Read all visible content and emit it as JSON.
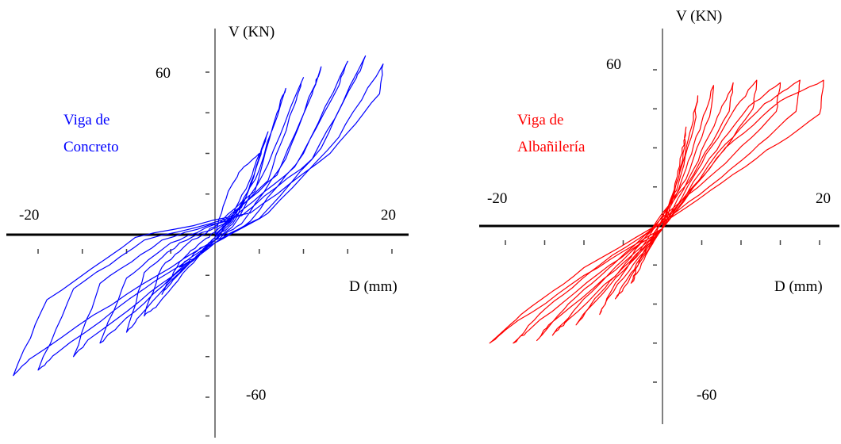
{
  "chart_data": [
    {
      "type": "line",
      "panel": "left",
      "ylabel": "V (KN)",
      "xlabel": "D (mm)",
      "y_top_label": "60",
      "y_bottom_label": "-60",
      "x_left_label": "-20",
      "x_right_label": "20",
      "annotation_line1": "Viga de",
      "annotation_line2": "Concreto",
      "color": "#0000ff",
      "xlim": [
        -25,
        25
      ],
      "ylim": [
        -70,
        70
      ],
      "series": [
        {
          "values": [
            [
              0,
              0
            ],
            [
              1.5,
              16
            ],
            [
              3,
              24
            ],
            [
              5,
              30
            ],
            [
              4.2,
              22
            ],
            [
              2,
              7
            ],
            [
              0,
              -1
            ],
            [
              -2,
              -6
            ],
            [
              -4,
              -12
            ],
            [
              -2.5,
              -9
            ],
            [
              0,
              -2
            ],
            [
              2,
              5
            ],
            [
              4,
              18
            ],
            [
              6,
              38
            ],
            [
              5,
              28
            ],
            [
              3,
              10
            ],
            [
              0,
              1
            ],
            [
              -2,
              -4
            ],
            [
              -4,
              -10
            ],
            [
              -6,
              -22
            ],
            [
              -4.5,
              -16
            ],
            [
              -2,
              -8
            ],
            [
              0,
              -1
            ],
            [
              2,
              4
            ],
            [
              5,
              24
            ],
            [
              8,
              54
            ],
            [
              7,
              45
            ],
            [
              4.5,
              16
            ],
            [
              0,
              3
            ],
            [
              -3,
              -3
            ],
            [
              -6,
              -12
            ],
            [
              -8,
              -30
            ],
            [
              -6.5,
              -26
            ],
            [
              -3,
              -12
            ],
            [
              0,
              -2
            ],
            [
              2,
              3
            ],
            [
              6,
              26
            ],
            [
              10,
              58
            ],
            [
              9,
              48
            ],
            [
              6,
              20
            ],
            [
              1,
              4
            ],
            [
              -4,
              -3
            ],
            [
              -8,
              -14
            ],
            [
              -10,
              -36
            ],
            [
              -8.5,
              -30
            ],
            [
              -4,
              -14
            ],
            [
              0,
              -2
            ],
            [
              3,
              4
            ],
            [
              8,
              28
            ],
            [
              12,
              62
            ],
            [
              11,
              52
            ],
            [
              7,
              22
            ],
            [
              1,
              5
            ],
            [
              -5,
              -3
            ],
            [
              -10,
              -16
            ],
            [
              -13,
              -40
            ],
            [
              -11,
              -34
            ],
            [
              -5,
              -16
            ],
            [
              0,
              -3
            ],
            [
              4,
              5
            ],
            [
              10,
              30
            ],
            [
              15,
              64
            ],
            [
              14,
              55
            ],
            [
              9,
              25
            ],
            [
              2,
              6
            ],
            [
              -6,
              -2
            ],
            [
              -13,
              -18
            ],
            [
              -16,
              -45
            ],
            [
              -14,
              -38
            ],
            [
              -6,
              -18
            ],
            [
              0,
              -3
            ],
            [
              5,
              6
            ],
            [
              12,
              32
            ],
            [
              17,
              66
            ],
            [
              16,
              58
            ],
            [
              11,
              28
            ],
            [
              3,
              7
            ],
            [
              -8,
              -2
            ],
            [
              -16,
              -20
            ],
            [
              -20,
              -50
            ],
            [
              -18,
              -44
            ],
            [
              -8,
              -20
            ],
            [
              0,
              -3
            ],
            [
              6,
              8
            ],
            [
              14,
              36
            ],
            [
              19,
              63
            ],
            [
              18.6,
              52
            ],
            [
              13,
              30
            ],
            [
              4,
              8
            ],
            [
              -9,
              -1
            ],
            [
              -19,
              -24
            ],
            [
              -22.8,
              -52
            ],
            [
              -21,
              -46
            ],
            [
              -10,
              -22
            ],
            [
              0,
              -2
            ],
            [
              2,
              6
            ],
            [
              0,
              0
            ]
          ]
        }
      ]
    },
    {
      "type": "line",
      "panel": "right",
      "ylabel": "V (KN)",
      "xlabel": "D (mm)",
      "y_top_label": "60",
      "y_bottom_label": "-60",
      "x_left_label": "-20",
      "x_right_label": "20",
      "annotation_line1": "Viga de",
      "annotation_line2": "Albañilería",
      "color": "#ff0000",
      "xlim": [
        -25,
        25
      ],
      "ylim": [
        -70,
        70
      ],
      "series": [
        {
          "values": [
            [
              0,
              0
            ],
            [
              1.5,
              14
            ],
            [
              2.5,
              28
            ],
            [
              3,
              38
            ],
            [
              2.6,
              26
            ],
            [
              1.5,
              12
            ],
            [
              0,
              2
            ],
            [
              -1.5,
              -6
            ],
            [
              -3,
              -14
            ],
            [
              -4,
              -22
            ],
            [
              -3.2,
              -18
            ],
            [
              -1.5,
              -8
            ],
            [
              0,
              -1
            ],
            [
              2,
              18
            ],
            [
              3.5,
              36
            ],
            [
              4.5,
              50
            ],
            [
              4,
              38
            ],
            [
              2,
              16
            ],
            [
              0,
              3
            ],
            [
              -2,
              -8
            ],
            [
              -4,
              -18
            ],
            [
              -6,
              -28
            ],
            [
              -5,
              -24
            ],
            [
              -2,
              -10
            ],
            [
              0,
              -1
            ],
            [
              3,
              22
            ],
            [
              5,
              40
            ],
            [
              6.5,
              54
            ],
            [
              6,
              42
            ],
            [
              3,
              18
            ],
            [
              0,
              4
            ],
            [
              -3,
              -10
            ],
            [
              -6,
              -22
            ],
            [
              -8,
              -34
            ],
            [
              -7,
              -28
            ],
            [
              -3,
              -12
            ],
            [
              0,
              -1
            ],
            [
              4,
              22
            ],
            [
              7,
              42
            ],
            [
              9,
              55
            ],
            [
              8.5,
              44
            ],
            [
              4,
              20
            ],
            [
              0,
              5
            ],
            [
              -4,
              -12
            ],
            [
              -8,
              -26
            ],
            [
              -11,
              -38
            ],
            [
              -9.5,
              -32
            ],
            [
              -4,
              -14
            ],
            [
              0,
              -1
            ],
            [
              5,
              24
            ],
            [
              9,
              44
            ],
            [
              12,
              56
            ],
            [
              11.5,
              45
            ],
            [
              6,
              22
            ],
            [
              1,
              5
            ],
            [
              -5,
              -13
            ],
            [
              -10,
              -28
            ],
            [
              -14,
              -42
            ],
            [
              -12,
              -36
            ],
            [
              -5,
              -16
            ],
            [
              0,
              -1
            ],
            [
              6,
              26
            ],
            [
              11,
              46
            ],
            [
              15,
              55
            ],
            [
              14.5,
              44
            ],
            [
              8,
              24
            ],
            [
              1,
              6
            ],
            [
              -6,
              -14
            ],
            [
              -12,
              -30
            ],
            [
              -16,
              -44
            ],
            [
              -14.5,
              -38
            ],
            [
              -6,
              -17
            ],
            [
              0,
              -1
            ],
            [
              7,
              28
            ],
            [
              13,
              47
            ],
            [
              17.5,
              56
            ],
            [
              17,
              44
            ],
            [
              10,
              25
            ],
            [
              2,
              6
            ],
            [
              -8,
              -15
            ],
            [
              -15,
              -32
            ],
            [
              -19,
              -45
            ],
            [
              -17,
              -40
            ],
            [
              -8,
              -18
            ],
            [
              0,
              -1
            ],
            [
              8,
              30
            ],
            [
              15,
              48
            ],
            [
              20.5,
              56
            ],
            [
              20,
              43
            ],
            [
              12,
              26
            ],
            [
              3,
              7
            ],
            [
              -10,
              -16
            ],
            [
              -18,
              -34
            ],
            [
              -22,
              -45
            ],
            [
              -20,
              -40
            ],
            [
              -10,
              -19
            ],
            [
              0,
              -1
            ],
            [
              0,
              0
            ]
          ]
        }
      ]
    }
  ]
}
